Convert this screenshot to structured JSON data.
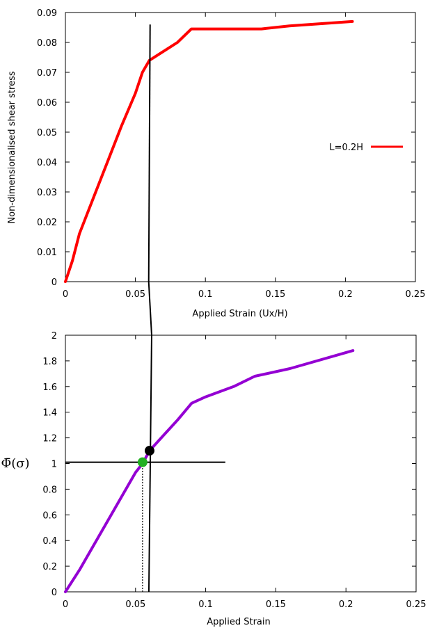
{
  "chart_data": [
    {
      "type": "line",
      "xlabel": "Applied Strain (Ux/H)",
      "ylabel": "Non-dimensionalised shear stress",
      "xlim": [
        0,
        0.25
      ],
      "ylim": [
        0,
        0.09
      ],
      "xticks": [
        0,
        0.05,
        0.1,
        0.15,
        0.2,
        0.25
      ],
      "xtick_labels": [
        "0",
        "0.05",
        "0.1",
        "0.15",
        "0.2",
        "0.25"
      ],
      "yticks": [
        0,
        0.01,
        0.02,
        0.03,
        0.04,
        0.05,
        0.06,
        0.07,
        0.08,
        0.09
      ],
      "ytick_labels": [
        "0",
        "0.01",
        "0.02",
        "0.03",
        "0.04",
        "0.05",
        "0.06",
        "0.07",
        "0.08",
        "0.09"
      ],
      "grid": false,
      "legend_position": "right",
      "series": [
        {
          "name": "L=0.2H",
          "color": "#ff0000",
          "x": [
            0,
            0.005,
            0.01,
            0.02,
            0.03,
            0.04,
            0.05,
            0.055,
            0.06,
            0.07,
            0.08,
            0.09,
            0.1,
            0.14,
            0.16,
            0.205
          ],
          "y": [
            0,
            0.007,
            0.016,
            0.028,
            0.04,
            0.052,
            0.063,
            0.07,
            0.074,
            0.077,
            0.08,
            0.0845,
            0.0845,
            0.0845,
            0.0855,
            0.087
          ]
        }
      ],
      "reference_lines": [
        {
          "name": "vertical-marker",
          "color": "#000000",
          "x": [
            0.0595,
            0.0605
          ],
          "y": [
            0,
            0.086
          ]
        }
      ]
    },
    {
      "type": "line",
      "xlabel": "Applied Strain",
      "ylabel": "Φ̄(σ)",
      "xlim": [
        0,
        0.25
      ],
      "ylim": [
        0,
        2
      ],
      "xticks": [
        0,
        0.05,
        0.1,
        0.15,
        0.2,
        0.25
      ],
      "xtick_labels": [
        "0",
        "0.05",
        "0.1",
        "0.15",
        "0.2",
        "0.25"
      ],
      "yticks": [
        0,
        0.2,
        0.4,
        0.6,
        0.8,
        1,
        1.2,
        1.4,
        1.6,
        1.8,
        2
      ],
      "ytick_labels": [
        "0",
        "0.2",
        "0.4",
        "0.6",
        "0.8",
        "1",
        "1.2",
        "1.4",
        "1.6",
        "1.8",
        "2"
      ],
      "grid": false,
      "series": [
        {
          "color": "#9400d3",
          "x": [
            0,
            0.01,
            0.02,
            0.03,
            0.04,
            0.05,
            0.055,
            0.06,
            0.07,
            0.08,
            0.09,
            0.1,
            0.12,
            0.135,
            0.16,
            0.205
          ],
          "y": [
            0,
            0.17,
            0.36,
            0.55,
            0.74,
            0.93,
            1.0,
            1.1,
            1.22,
            1.34,
            1.47,
            1.52,
            1.6,
            1.68,
            1.74,
            1.88
          ]
        }
      ],
      "reference_lines": [
        {
          "name": "horizontal-level-line",
          "color": "#000000",
          "x": [
            0,
            0.114
          ],
          "y": [
            1.01,
            1.01
          ]
        },
        {
          "name": "vertical-marker",
          "color": "#000000",
          "x": [
            0.0595,
            0.0615
          ],
          "y": [
            0,
            2.0
          ]
        },
        {
          "name": "dotted-drop-line",
          "color": "#000000",
          "dashed": true,
          "x": [
            0.055,
            0.055
          ],
          "y": [
            0,
            1.01
          ]
        }
      ],
      "markers": [
        {
          "name": "green-point",
          "color": "#22b022",
          "x": 0.055,
          "y": 1.01
        },
        {
          "name": "black-point",
          "color": "#000000",
          "x": 0.06,
          "y": 1.1
        }
      ]
    }
  ]
}
